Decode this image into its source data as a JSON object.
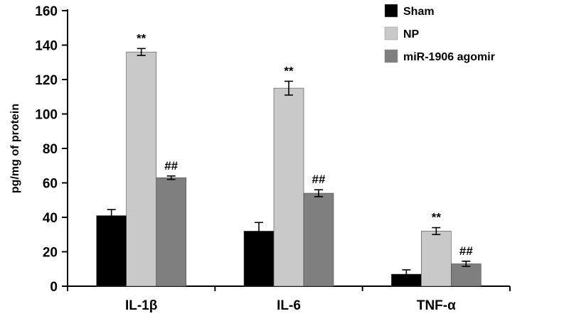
{
  "chart_data": {
    "type": "bar",
    "title": "",
    "xlabel": "",
    "ylabel": "pg/mg of protein",
    "ylim": [
      0,
      160
    ],
    "ytick_step": 20,
    "yticks": [
      0,
      20,
      40,
      60,
      80,
      100,
      120,
      140,
      160
    ],
    "grid": false,
    "legend_position": "top-right",
    "categories": [
      "IL-1β",
      "IL-6",
      "TNF-α"
    ],
    "series": [
      {
        "name": "Sham",
        "color": "#000000",
        "values": [
          41,
          32,
          7
        ],
        "errors": [
          3.5,
          5,
          2.5
        ],
        "annotations": [
          "",
          "",
          ""
        ]
      },
      {
        "name": "NP",
        "color": "#c9c9c9",
        "values": [
          136,
          115,
          32
        ],
        "errors": [
          2,
          4,
          2
        ],
        "annotations": [
          "**",
          "**",
          "**"
        ]
      },
      {
        "name": "miR-1906 agomir",
        "color": "#7f7f7f",
        "values": [
          63,
          54,
          13
        ],
        "errors": [
          1,
          2,
          1.5
        ],
        "annotations": [
          "##",
          "##",
          "##"
        ]
      }
    ]
  }
}
